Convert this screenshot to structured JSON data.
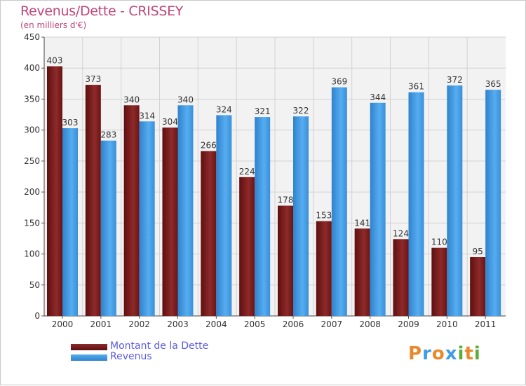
{
  "chart_data": {
    "type": "bar",
    "title": "Revenus/Dette - CRISSEY",
    "subtitle": "(en milliers d'€)",
    "categories": [
      "2000",
      "2001",
      "2002",
      "2003",
      "2004",
      "2005",
      "2006",
      "2007",
      "2008",
      "2009",
      "2010",
      "2011"
    ],
    "series": [
      {
        "name": "Montant de la Dette",
        "color": "#7a1a1a",
        "values": [
          403,
          373,
          340,
          304,
          266,
          224,
          178,
          153,
          141,
          124,
          110,
          95
        ]
      },
      {
        "name": "Revenus",
        "color": "#3f9be6",
        "values": [
          303,
          283,
          314,
          340,
          324,
          321,
          322,
          369,
          344,
          361,
          372,
          365
        ]
      }
    ],
    "ylim": [
      0,
      450
    ],
    "yticks": [
      0,
      50,
      100,
      150,
      200,
      250,
      300,
      350,
      400,
      450
    ],
    "grid": true,
    "legend_position": "bottom-left"
  },
  "brand": {
    "letters": [
      "P",
      "r",
      "o",
      "x",
      "i",
      "t",
      "i"
    ],
    "colors": [
      "#e8892b",
      "#3f9be6",
      "#e8892b",
      "#3f9be6",
      "#5cae3a",
      "#e8892b",
      "#5cae3a"
    ]
  }
}
